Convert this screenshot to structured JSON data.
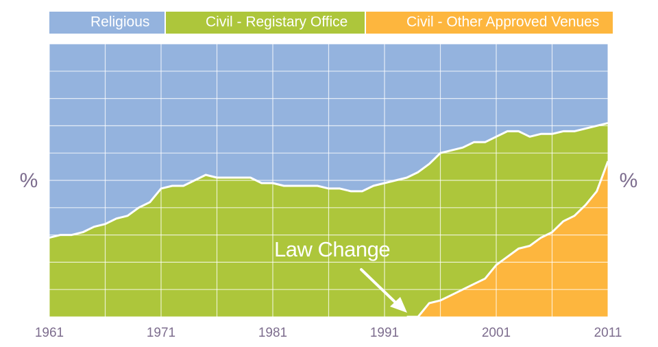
{
  "chart_data": {
    "type": "area",
    "title": "",
    "xlabel": "",
    "ylabel_left": "%",
    "ylabel_right": "%",
    "xlim": [
      1961,
      2011
    ],
    "ylim": [
      0,
      100
    ],
    "grid": true,
    "legend_placement": "top",
    "x_ticks": [
      "1961",
      "1971",
      "1981",
      "1991",
      "2001",
      "2011"
    ],
    "x": [
      1961,
      1962,
      1963,
      1964,
      1965,
      1966,
      1967,
      1968,
      1969,
      1970,
      1971,
      1972,
      1973,
      1974,
      1975,
      1976,
      1977,
      1978,
      1979,
      1980,
      1981,
      1982,
      1983,
      1984,
      1985,
      1986,
      1987,
      1988,
      1989,
      1990,
      1991,
      1992,
      1993,
      1994,
      1995,
      1996,
      1997,
      1998,
      1999,
      2000,
      2001,
      2002,
      2003,
      2004,
      2005,
      2006,
      2007,
      2008,
      2009,
      2010,
      2011
    ],
    "series": [
      {
        "name": "Religious",
        "color": "#94b3de",
        "values": [
          71,
          70,
          70,
          69,
          67,
          66,
          64,
          63,
          60,
          58,
          53,
          52,
          52,
          50,
          48,
          49,
          49,
          49,
          49,
          51,
          51,
          52,
          52,
          52,
          52,
          53,
          53,
          54,
          54,
          52,
          51,
          50,
          49,
          47,
          44,
          40,
          39,
          38,
          36,
          36,
          34,
          32,
          32,
          34,
          33,
          33,
          32,
          32,
          31,
          30,
          29
        ]
      },
      {
        "name": "Civil - Registary Office",
        "color": "#adc63b",
        "values": [
          29,
          30,
          30,
          31,
          33,
          34,
          36,
          37,
          40,
          42,
          47,
          48,
          48,
          50,
          52,
          51,
          51,
          51,
          51,
          49,
          49,
          48,
          48,
          48,
          48,
          47,
          47,
          46,
          46,
          48,
          49,
          50,
          51,
          53,
          51,
          54,
          53,
          52,
          52,
          50,
          47,
          46,
          43,
          40,
          38,
          36,
          33,
          31,
          28,
          24,
          14
        ]
      },
      {
        "name": "Civil - Other Approved Venues",
        "color": "#fdb63e",
        "values": [
          0,
          0,
          0,
          0,
          0,
          0,
          0,
          0,
          0,
          0,
          0,
          0,
          0,
          0,
          0,
          0,
          0,
          0,
          0,
          0,
          0,
          0,
          0,
          0,
          0,
          0,
          0,
          0,
          0,
          0,
          0,
          0,
          0,
          0,
          5,
          6,
          8,
          10,
          12,
          14,
          19,
          22,
          25,
          26,
          29,
          31,
          35,
          37,
          41,
          46,
          57
        ]
      }
    ],
    "annotations": [
      {
        "text": "Law Change",
        "x": 1994
      }
    ]
  }
}
